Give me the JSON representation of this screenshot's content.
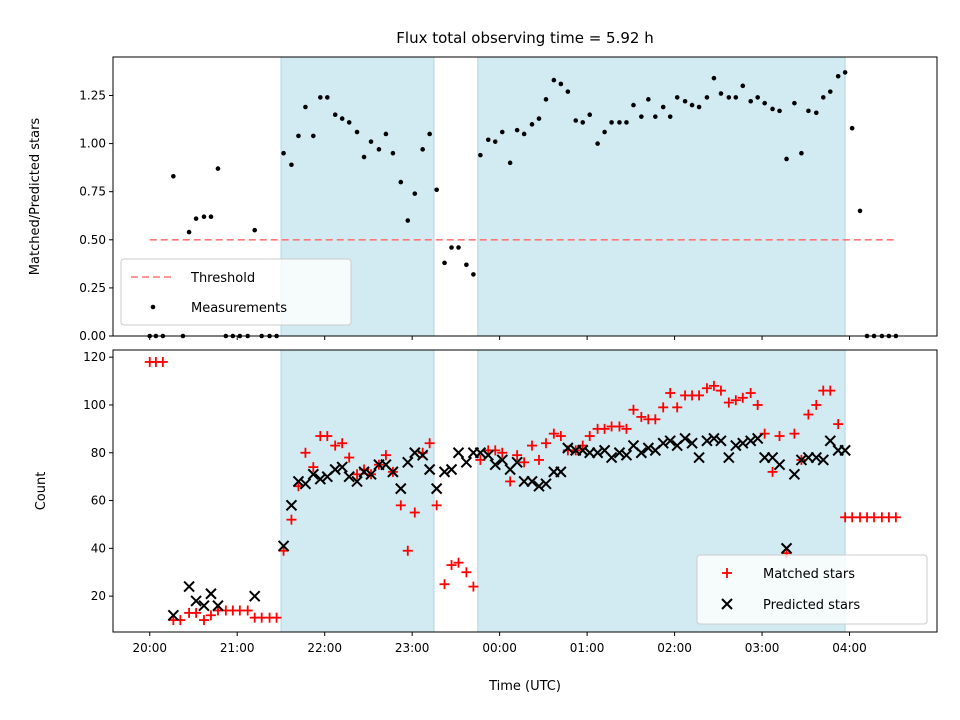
{
  "chart_data": [
    {
      "type": "scatter",
      "title": "Flux total observing time = 5.92 h",
      "ylabel": "Matched/Predicted stars",
      "xlabel": "",
      "ylim": [
        0,
        1.45
      ],
      "yticks": [
        "0.00",
        "0.25",
        "0.50",
        "0.75",
        "1.00",
        "1.25"
      ],
      "yticks_values": [
        0,
        0.25,
        0.5,
        0.75,
        1.0,
        1.25
      ],
      "threshold": {
        "name": "Threshold",
        "value": 0.5,
        "x_range": [
          20.0,
          28.55
        ],
        "color": "#ff7777"
      },
      "series": [
        {
          "name": "Measurements",
          "color": "#000000",
          "x": [
            20.0,
            20.07,
            20.15,
            20.27,
            20.38,
            20.45,
            20.53,
            20.62,
            20.7,
            20.78,
            20.87,
            20.95,
            21.03,
            21.12,
            21.2,
            21.28,
            21.37,
            21.45,
            21.53,
            21.62,
            21.7,
            21.78,
            21.87,
            21.95,
            22.03,
            22.12,
            22.2,
            22.28,
            22.37,
            22.45,
            22.53,
            22.62,
            22.7,
            22.78,
            22.87,
            22.95,
            23.03,
            23.12,
            23.2,
            23.28,
            23.37,
            23.45,
            23.53,
            23.62,
            23.7,
            23.78,
            23.87,
            23.95,
            24.03,
            24.12,
            24.2,
            24.28,
            24.37,
            24.45,
            24.53,
            24.62,
            24.7,
            24.78,
            24.87,
            24.95,
            25.03,
            25.12,
            25.2,
            25.28,
            25.37,
            25.45,
            25.53,
            25.62,
            25.7,
            25.78,
            25.87,
            25.95,
            26.03,
            26.12,
            26.2,
            26.28,
            26.37,
            26.45,
            26.53,
            26.62,
            26.7,
            26.78,
            26.87,
            26.95,
            27.03,
            27.12,
            27.2,
            27.28,
            27.37,
            27.45,
            27.53,
            27.62,
            27.7,
            27.78,
            27.87,
            27.95,
            28.03,
            28.12,
            28.2,
            28.28,
            28.37,
            28.45,
            28.53
          ],
          "y": [
            0.0,
            0.0,
            0.0,
            0.83,
            0.0,
            0.54,
            0.61,
            0.62,
            0.62,
            0.87,
            0.0,
            0.0,
            0.0,
            0.0,
            0.55,
            0.0,
            0.0,
            0.0,
            0.95,
            0.89,
            1.04,
            1.19,
            1.04,
            1.24,
            1.24,
            1.15,
            1.13,
            1.11,
            1.06,
            0.93,
            1.01,
            0.97,
            1.05,
            0.95,
            0.8,
            0.6,
            0.74,
            0.97,
            1.05,
            0.76,
            0.38,
            0.46,
            0.46,
            0.37,
            0.32,
            0.94,
            1.02,
            1.01,
            1.06,
            0.9,
            1.07,
            1.05,
            1.1,
            1.13,
            1.23,
            1.33,
            1.31,
            1.27,
            1.12,
            1.11,
            1.15,
            1.0,
            1.06,
            1.11,
            1.11,
            1.11,
            1.2,
            1.14,
            1.23,
            1.14,
            1.19,
            1.14,
            1.24,
            1.22,
            1.2,
            1.19,
            1.24,
            1.34,
            1.26,
            1.24,
            1.24,
            1.3,
            1.22,
            1.24,
            1.21,
            1.18,
            1.17,
            0.92,
            1.21,
            0.95,
            1.17,
            1.16,
            1.24,
            1.27,
            1.35,
            1.37,
            1.08,
            0.65,
            0.0,
            0.0,
            0.0,
            0.0,
            0.0
          ]
        }
      ],
      "legend": {
        "placement": "lower-left",
        "entries": [
          "Threshold",
          "Measurements"
        ]
      },
      "shaded_regions": [
        [
          21.5,
          23.25
        ],
        [
          23.75,
          27.95
        ]
      ],
      "shade_color": "#add8e6",
      "grid": false
    },
    {
      "type": "scatter",
      "title": "",
      "xlabel": "Time (UTC)",
      "ylabel": "Count",
      "ylim": [
        5,
        123
      ],
      "yticks": [
        "20",
        "40",
        "60",
        "80",
        "100",
        "120"
      ],
      "yticks_values": [
        20,
        40,
        60,
        80,
        100,
        120
      ],
      "xticks": [
        "20:00",
        "21:00",
        "22:00",
        "23:00",
        "00:00",
        "01:00",
        "02:00",
        "03:00",
        "04:00"
      ],
      "xticks_values": [
        20,
        21,
        22,
        23,
        24,
        25,
        26,
        27,
        28
      ],
      "series": [
        {
          "name": "Matched stars",
          "marker": "plus",
          "color": "#ff0000",
          "x": [
            20.0,
            20.07,
            20.15,
            20.27,
            20.35,
            20.45,
            20.53,
            20.62,
            20.7,
            20.78,
            20.87,
            20.95,
            21.03,
            21.12,
            21.2,
            21.28,
            21.37,
            21.45,
            21.53,
            21.62,
            21.7,
            21.78,
            21.87,
            21.95,
            22.03,
            22.12,
            22.2,
            22.28,
            22.37,
            22.45,
            22.53,
            22.62,
            22.7,
            22.78,
            22.87,
            22.95,
            23.03,
            23.12,
            23.2,
            23.28,
            23.37,
            23.45,
            23.53,
            23.62,
            23.7,
            23.78,
            23.87,
            23.95,
            24.03,
            24.12,
            24.2,
            24.28,
            24.37,
            24.45,
            24.53,
            24.62,
            24.7,
            24.78,
            24.87,
            24.95,
            25.03,
            25.12,
            25.2,
            25.28,
            25.37,
            25.45,
            25.53,
            25.62,
            25.7,
            25.78,
            25.87,
            25.95,
            26.03,
            26.12,
            26.2,
            26.28,
            26.37,
            26.45,
            26.53,
            26.62,
            26.7,
            26.78,
            26.87,
            26.95,
            27.03,
            27.12,
            27.2,
            27.28,
            27.37,
            27.45,
            27.53,
            27.62,
            27.7,
            27.78,
            27.87,
            27.95,
            28.03,
            28.12,
            28.2,
            28.28,
            28.37,
            28.45,
            28.53
          ],
          "y": [
            118,
            118,
            118,
            10,
            10,
            13,
            13,
            10,
            12,
            14,
            14,
            14,
            14,
            14,
            11,
            11,
            11,
            11,
            39,
            52,
            66,
            80,
            74,
            87,
            87,
            83,
            84,
            78,
            71,
            73,
            71,
            75,
            79,
            72,
            58,
            39,
            55,
            80,
            84,
            58,
            25,
            33,
            34,
            30,
            24,
            77,
            81,
            81,
            80,
            68,
            79,
            76,
            83,
            77,
            84,
            88,
            87,
            81,
            81,
            83,
            87,
            90,
            90,
            91,
            91,
            90,
            98,
            95,
            94,
            94,
            99,
            105,
            99,
            104,
            104,
            104,
            107,
            108,
            106,
            101,
            102,
            103,
            105,
            100,
            88,
            72,
            87,
            38,
            88,
            77,
            96,
            100,
            106,
            106,
            92,
            53,
            53,
            53,
            53,
            53,
            53,
            53,
            53
          ]
        },
        {
          "name": "Predicted stars",
          "marker": "cross",
          "color": "#000000",
          "x": [
            20.27,
            20.45,
            20.53,
            20.62,
            20.7,
            20.78,
            21.2,
            21.53,
            21.62,
            21.7,
            21.78,
            21.87,
            21.95,
            22.03,
            22.12,
            22.2,
            22.28,
            22.37,
            22.45,
            22.53,
            22.62,
            22.7,
            22.78,
            22.87,
            22.95,
            23.03,
            23.12,
            23.2,
            23.28,
            23.37,
            23.45,
            23.53,
            23.62,
            23.7,
            23.78,
            23.87,
            23.95,
            24.03,
            24.12,
            24.2,
            24.28,
            24.37,
            24.45,
            24.53,
            24.62,
            24.7,
            24.78,
            24.87,
            24.95,
            25.03,
            25.12,
            25.2,
            25.28,
            25.37,
            25.45,
            25.53,
            25.62,
            25.7,
            25.78,
            25.87,
            25.95,
            26.03,
            26.12,
            26.2,
            26.28,
            26.37,
            26.45,
            26.53,
            26.62,
            26.7,
            26.78,
            26.87,
            26.95,
            27.03,
            27.12,
            27.2,
            27.28,
            27.37,
            27.45,
            27.53,
            27.62,
            27.7,
            27.78,
            27.87,
            27.95
          ],
          "y": [
            12,
            24,
            18,
            16,
            21,
            16,
            20,
            41,
            58,
            68,
            67,
            71,
            69,
            70,
            73,
            74,
            70,
            68,
            72,
            71,
            75,
            75,
            72,
            65,
            76,
            80,
            79,
            73,
            65,
            72,
            73,
            80,
            76,
            80,
            80,
            79,
            75,
            77,
            73,
            76,
            68,
            68,
            66,
            67,
            72,
            72,
            82,
            81,
            81,
            80,
            80,
            81,
            78,
            80,
            79,
            83,
            80,
            82,
            81,
            84,
            85,
            83,
            86,
            84,
            78,
            85,
            86,
            85,
            78,
            83,
            84,
            85,
            86,
            78,
            78,
            75,
            40,
            71,
            77,
            78,
            78,
            77,
            85,
            81,
            81
          ],
          "note_hidden": ""
        }
      ],
      "legend": {
        "placement": "lower-right",
        "entries": [
          "Matched stars",
          "Predicted stars"
        ]
      },
      "shaded_regions": [
        [
          21.5,
          23.25
        ],
        [
          23.75,
          27.95
        ]
      ],
      "shade_color": "#add8e6",
      "grid": false
    }
  ]
}
